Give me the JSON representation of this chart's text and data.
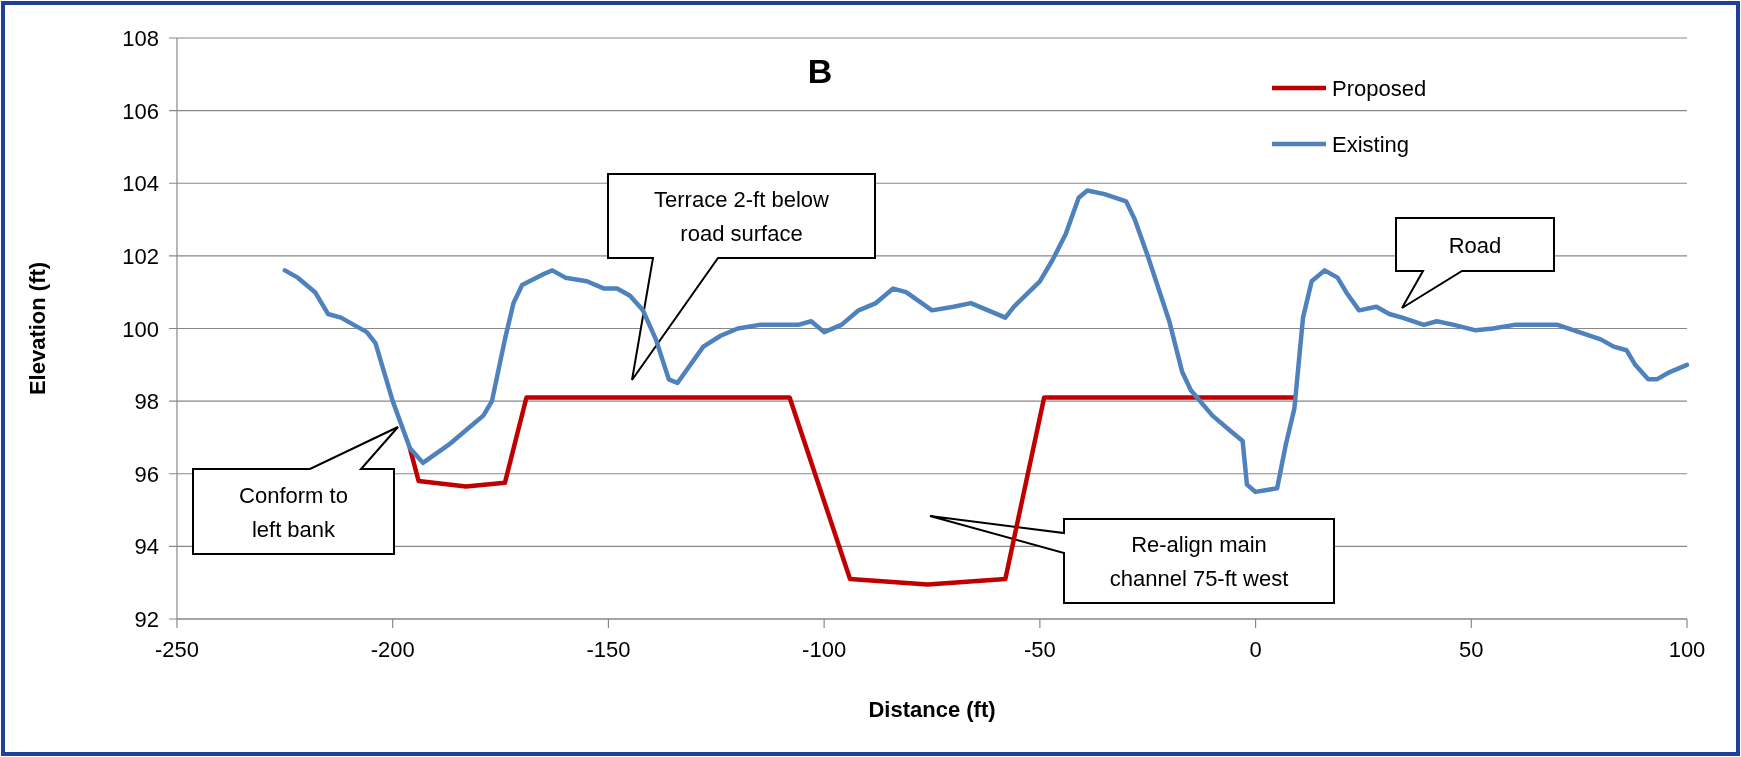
{
  "chart_data": {
    "type": "line",
    "title": "B",
    "xlabel": "Distance (ft)",
    "ylabel": "Elevation (ft)",
    "xlim": [
      -250,
      100
    ],
    "xticks": [
      -250,
      -200,
      -150,
      -100,
      -50,
      0,
      50,
      100
    ],
    "ylim": [
      92,
      108
    ],
    "yticks": [
      92,
      94,
      96,
      98,
      100,
      102,
      104,
      106,
      108
    ],
    "grid": "y",
    "legend": "top right",
    "marker": "none",
    "line_style": "solid",
    "series": [
      {
        "name": "Proposed",
        "color": "#c00000",
        "x": [
          -196,
          -194,
          -183,
          -174,
          -169,
          -108,
          -94,
          -76,
          -58,
          -49,
          9
        ],
        "values": [
          96.7,
          95.8,
          95.65,
          95.75,
          98.1,
          98.1,
          93.1,
          92.95,
          93.1,
          98.1,
          98.1
        ]
      },
      {
        "name": "Existing",
        "color": "#4f81bd",
        "x": [
          -225,
          -222,
          -218,
          -215,
          -212,
          -206,
          -204,
          -200,
          -196,
          -193,
          -187,
          -182,
          -179,
          -177,
          -174,
          -172,
          -170,
          -165,
          -163,
          -160,
          -155,
          -151,
          -148,
          -145,
          -142,
          -139,
          -136,
          -134,
          -131,
          -128,
          -124,
          -120,
          -115,
          -110,
          -106,
          -103,
          -100,
          -96,
          -92,
          -88,
          -84,
          -81,
          -75,
          -70,
          -66,
          -62,
          -58,
          -56,
          -50,
          -47,
          -44,
          -41,
          -39,
          -35,
          -30,
          -28,
          -25,
          -20,
          -17,
          -15,
          -10,
          -6,
          -3,
          -2,
          0,
          5,
          7,
          9,
          11,
          13,
          16,
          19,
          21,
          24,
          28,
          31,
          34,
          39,
          42,
          46,
          51,
          55,
          60,
          64,
          70,
          75,
          80,
          83,
          86,
          88,
          91,
          93,
          96,
          100
        ],
        "values": [
          101.6,
          101.4,
          101.0,
          100.4,
          100.3,
          99.9,
          99.6,
          98.0,
          96.7,
          96.3,
          96.8,
          97.3,
          97.6,
          98.0,
          99.7,
          100.7,
          101.2,
          101.5,
          101.6,
          101.4,
          101.3,
          101.1,
          101.1,
          100.9,
          100.5,
          99.7,
          98.6,
          98.5,
          99.0,
          99.5,
          99.8,
          100.0,
          100.1,
          100.1,
          100.1,
          100.2,
          99.9,
          100.1,
          100.5,
          100.7,
          101.1,
          101.0,
          100.5,
          100.6,
          100.7,
          100.5,
          100.3,
          100.6,
          101.3,
          101.9,
          102.6,
          103.6,
          103.8,
          103.7,
          103.5,
          103.0,
          102.0,
          100.2,
          98.8,
          98.3,
          97.6,
          97.2,
          96.9,
          95.7,
          95.5,
          95.6,
          96.8,
          97.8,
          100.3,
          101.3,
          101.6,
          101.4,
          101.0,
          100.5,
          100.6,
          100.4,
          100.3,
          100.1,
          100.2,
          100.1,
          99.95,
          100.0,
          100.1,
          100.1,
          100.1,
          99.9,
          99.7,
          99.5,
          99.4,
          99.0,
          98.6,
          98.6,
          98.8,
          99.0
        ]
      }
    ],
    "annotations": [
      "Conform to left bank",
      "Terrace 2-ft below road surface",
      "Road",
      "Re-align main channel 75-ft west"
    ]
  }
}
